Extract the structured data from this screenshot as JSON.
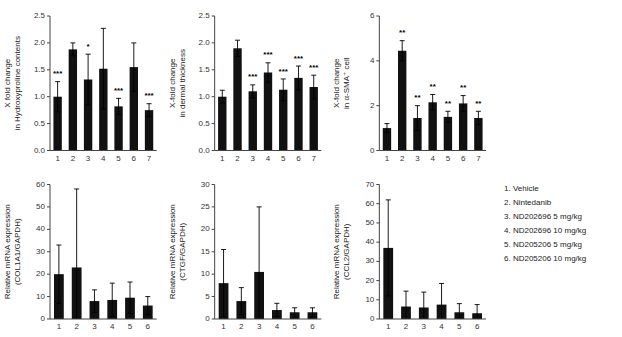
{
  "chart_data": [
    {
      "type": "bar",
      "ylabel": "X fold change\nin Hydroxyproline contents",
      "categories": [
        "1",
        "2",
        "3",
        "4",
        "5",
        "6",
        "7"
      ],
      "values": [
        1.0,
        1.88,
        1.32,
        1.52,
        0.82,
        1.55,
        0.75
      ],
      "errors": [
        0.28,
        0.12,
        0.47,
        0.75,
        0.15,
        0.45,
        0.12
      ],
      "color": "#111111",
      "ylim": [
        0,
        2.5
      ],
      "yticks": [
        {
          "value": 0,
          "label": "0.0"
        },
        0.5,
        {
          "value": 1,
          "label": "1.0"
        },
        1.5,
        {
          "value": 2,
          "label": "2.0"
        },
        2.5
      ],
      "annotations": [
        {
          "category": "1",
          "text": "***"
        },
        {
          "category": "3",
          "text": "*"
        },
        {
          "category": "5",
          "text": "***"
        },
        {
          "category": "7",
          "text": "***"
        }
      ]
    },
    {
      "type": "bar",
      "ylabel": "X-fold change\nin dermal thickness",
      "categories": [
        "1",
        "2",
        "3",
        "4",
        "5",
        "6",
        "7"
      ],
      "values": [
        1.0,
        1.9,
        1.1,
        1.45,
        1.13,
        1.35,
        1.18
      ],
      "errors": [
        0.12,
        0.15,
        0.12,
        0.18,
        0.2,
        0.22,
        0.22
      ],
      "color": "#111111",
      "ylim": [
        0,
        2.5
      ],
      "yticks": [
        {
          "value": 0,
          "label": "0.0"
        },
        0.5,
        {
          "value": 1,
          "label": "1.0"
        },
        1.5,
        {
          "value": 2,
          "label": "2.0"
        },
        2.5
      ],
      "annotations": [
        {
          "category": "3",
          "text": "***"
        },
        {
          "category": "4",
          "text": "***"
        },
        {
          "category": "5",
          "text": "***"
        },
        {
          "category": "6",
          "text": "***"
        },
        {
          "category": "7",
          "text": "***"
        }
      ]
    },
    {
      "type": "bar",
      "ylabel": "X-fold change\nin α-SMA⁺ cell",
      "categories": [
        "1",
        "2",
        "3",
        "4",
        "5",
        "6",
        "7"
      ],
      "values": [
        1.0,
        4.45,
        1.45,
        2.15,
        1.5,
        2.1,
        1.45
      ],
      "errors": [
        0.2,
        0.45,
        0.55,
        0.35,
        0.25,
        0.35,
        0.3
      ],
      "color": "#111111",
      "ylim": [
        0,
        6
      ],
      "yticks": [
        0,
        2,
        4,
        6
      ],
      "annotations": [
        {
          "category": "2",
          "text": "**"
        },
        {
          "category": "3",
          "text": "**"
        },
        {
          "category": "4",
          "text": "**"
        },
        {
          "category": "5",
          "text": "**"
        },
        {
          "category": "6",
          "text": "**"
        },
        {
          "category": "7",
          "text": "**"
        }
      ]
    },
    {
      "type": "bar",
      "ylabel": "Relative mRNA expression\n(COL1A1/GAPDH)",
      "categories": [
        "1",
        "2",
        "3",
        "4",
        "5",
        "6"
      ],
      "values": [
        20.0,
        23.0,
        8.0,
        8.5,
        9.5,
        6.0
      ],
      "errors": [
        13.0,
        35.0,
        5.0,
        7.5,
        7.0,
        4.0
      ],
      "color": "#111111",
      "ylim": [
        0,
        60
      ],
      "yticks": [
        0,
        10,
        20,
        30,
        40,
        50,
        60
      ]
    },
    {
      "type": "bar",
      "ylabel": "Relative mRNA expression\n(CTGF/GAPDH)",
      "categories": [
        "1",
        "2",
        "3",
        "4",
        "5",
        "6"
      ],
      "values": [
        8.0,
        4.0,
        10.5,
        2.0,
        1.5,
        1.5
      ],
      "errors": [
        7.5,
        3.0,
        14.5,
        1.5,
        1.0,
        1.0
      ],
      "color": "#111111",
      "ylim": [
        0,
        30
      ],
      "yticks": [
        0,
        5,
        10,
        15,
        20,
        25,
        30
      ]
    },
    {
      "type": "bar",
      "ylabel": "Relative mRNA expression\n(CCL2/GAPDH)",
      "categories": [
        "1",
        "2",
        "3",
        "4",
        "5",
        "6"
      ],
      "values": [
        37.0,
        6.5,
        6.0,
        7.5,
        3.5,
        3.0
      ],
      "errors": [
        25.0,
        8.0,
        8.0,
        11.0,
        4.5,
        4.5
      ],
      "color": "#111111",
      "ylim": [
        0,
        70
      ],
      "yticks": [
        0,
        10,
        20,
        30,
        40,
        50,
        60,
        70
      ]
    }
  ],
  "annotations": [
    "1. Vehicle",
    "2. Nintedanib",
    "3. ND202696 5 mg/kg",
    "4. ND202696 10 mg/kg",
    "5. ND205206 5 mg/kg",
    "6. ND205206 10 mg/kg"
  ]
}
